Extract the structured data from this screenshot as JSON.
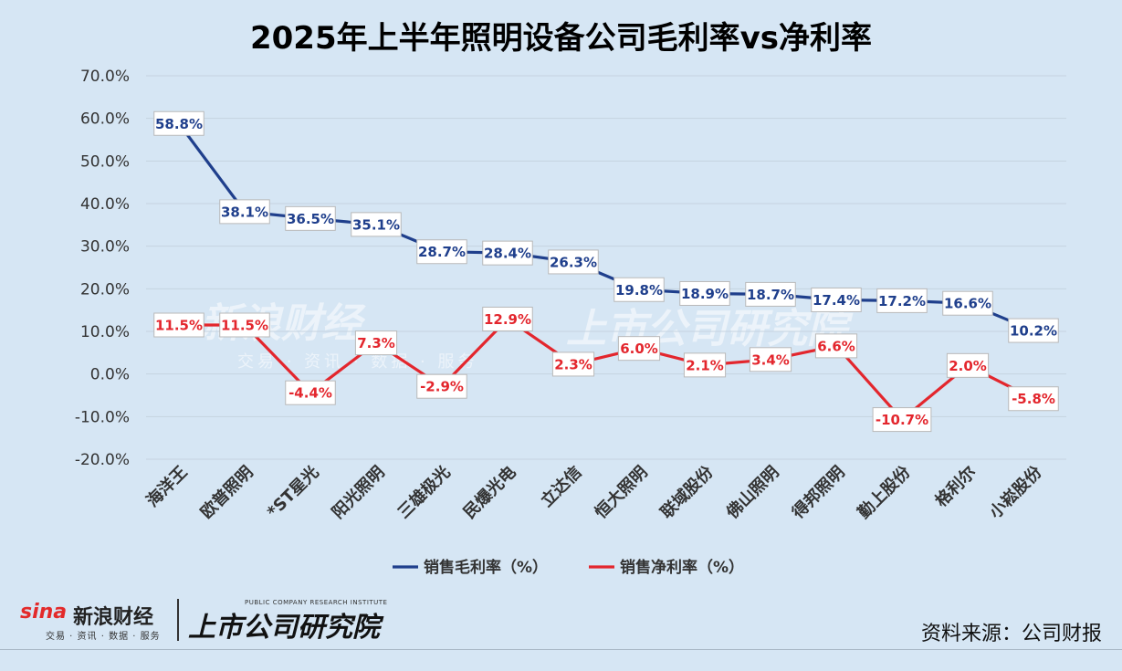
{
  "chart_data": {
    "type": "line",
    "title": "2025年上半年照明设备公司毛利率vs净利率",
    "categories": [
      "海洋王",
      "欧普照明",
      "*ST星光",
      "阳光照明",
      "三雄极光",
      "民爆光电",
      "立达信",
      "恒大照明",
      "联域股份",
      "佛山照明",
      "得邦照明",
      "勤上股份",
      "格利尔",
      "小崧股份"
    ],
    "ylim": [
      -20,
      70
    ],
    "yticks": [
      -20,
      -10,
      0,
      10,
      20,
      30,
      40,
      50,
      60,
      70
    ],
    "ytick_labels": [
      "-20.0%",
      "-10.0%",
      "0.0%",
      "10.0%",
      "20.0%",
      "30.0%",
      "40.0%",
      "50.0%",
      "60.0%",
      "70.0%"
    ],
    "grid": true,
    "legend_position": "bottom",
    "series": [
      {
        "name": "销售毛利率（%）",
        "color": "#1f3f8c",
        "values": [
          58.8,
          38.1,
          36.5,
          35.1,
          28.7,
          28.4,
          26.3,
          19.8,
          18.9,
          18.7,
          17.4,
          17.2,
          16.6,
          10.2
        ],
        "labels": [
          "58.8%",
          "38.1%",
          "36.5%",
          "35.1%",
          "28.7%",
          "28.4%",
          "26.3%",
          "19.8%",
          "18.9%",
          "18.7%",
          "17.4%",
          "17.2%",
          "16.6%",
          "10.2%"
        ]
      },
      {
        "name": "销售净利率（%）",
        "color": "#e3262d",
        "values": [
          11.5,
          11.5,
          -4.4,
          7.3,
          -2.9,
          12.9,
          2.3,
          6.0,
          2.1,
          3.4,
          6.6,
          -10.7,
          2.0,
          -5.8
        ],
        "labels": [
          "11.5%",
          "11.5%",
          "-4.4%",
          "7.3%",
          "-2.9%",
          "12.9%",
          "2.3%",
          "6.0%",
          "2.1%",
          "3.4%",
          "6.6%",
          "-10.7%",
          "2.0%",
          "-5.8%"
        ]
      }
    ]
  },
  "logo": {
    "sina": "sina",
    "name": "新浪财经",
    "sub": "交易 · 资讯 · 数据 · 服务",
    "institute": "上市公司研究院",
    "institute_en": "PUBLIC COMPANY RESEARCH INSTITUTE"
  },
  "source": "资料来源：公司财报"
}
